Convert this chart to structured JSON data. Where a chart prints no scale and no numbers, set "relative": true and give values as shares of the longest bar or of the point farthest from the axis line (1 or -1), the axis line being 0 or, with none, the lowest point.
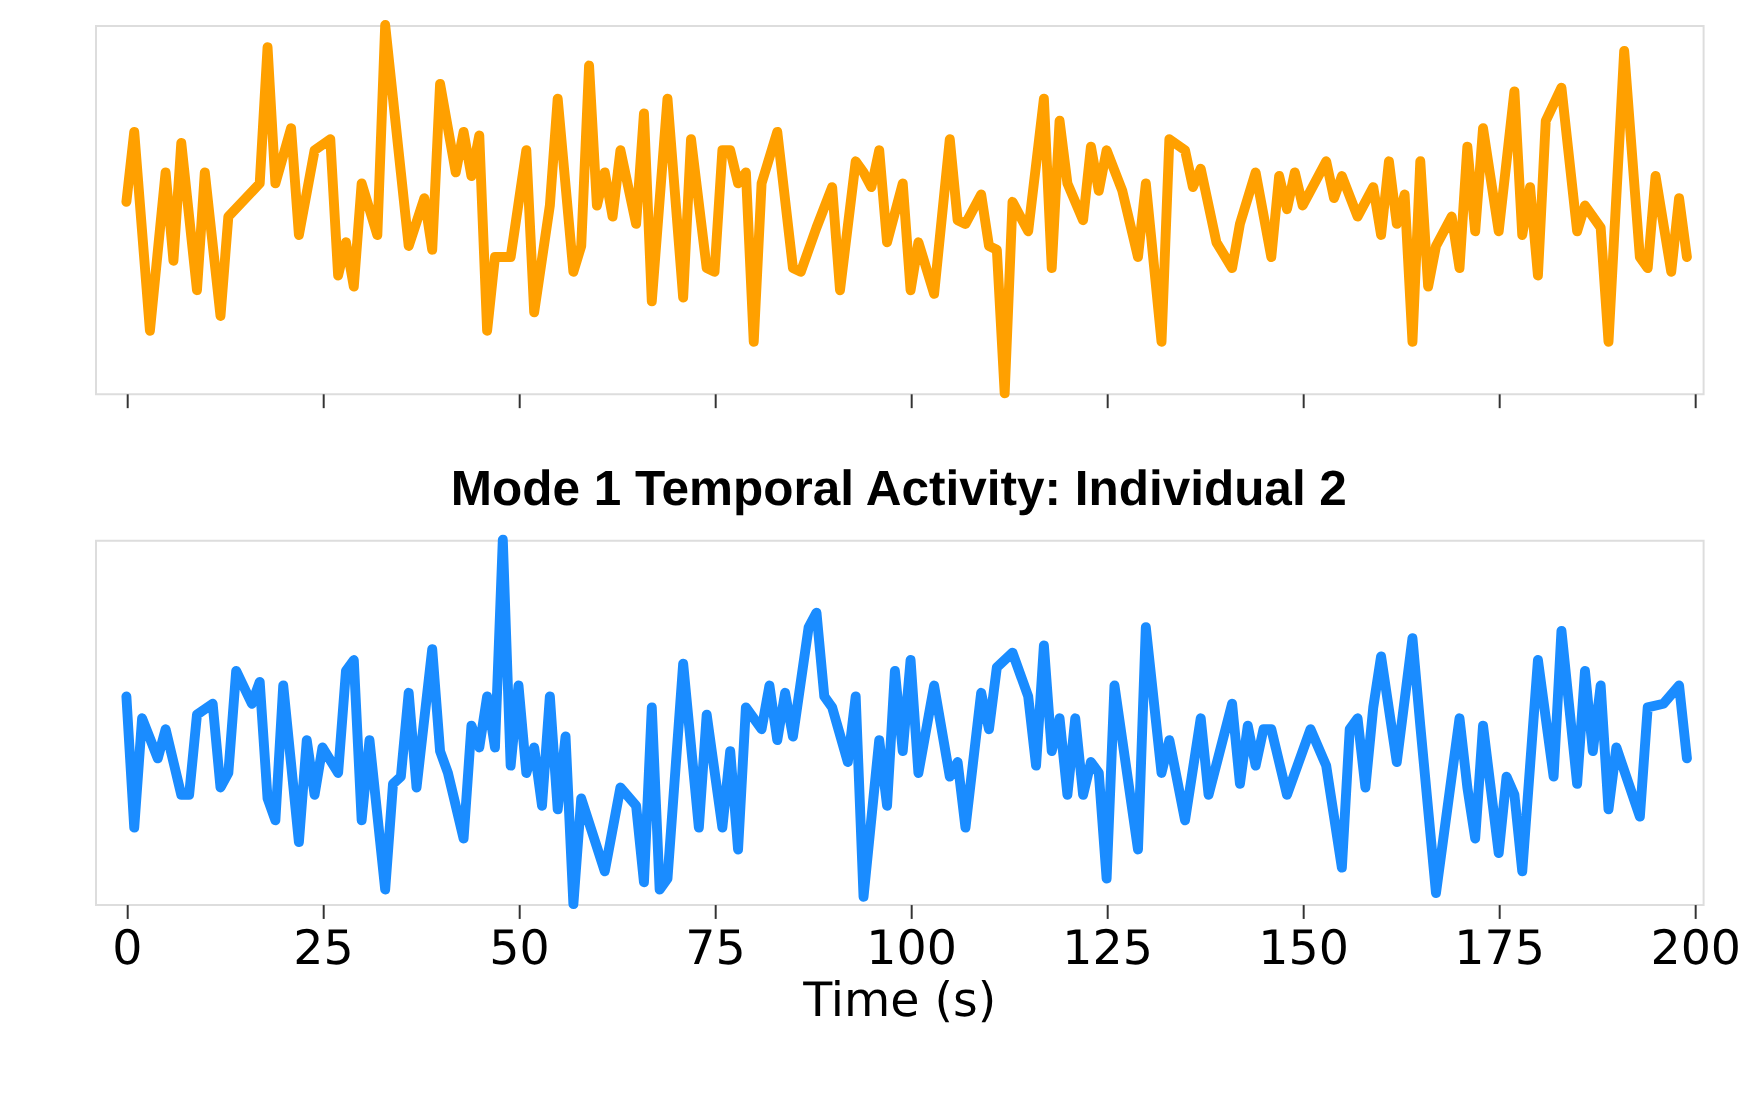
{
  "chart_data": [
    {
      "type": "line",
      "xlim": [
        -4,
        201
      ],
      "xticks": [
        0,
        25,
        50,
        75,
        100,
        125,
        150,
        175,
        200
      ],
      "tick_labels": false,
      "relative": true,
      "grid": false,
      "line_style": "solid",
      "marker": "none",
      "series": [
        {
          "color": "#ffa000",
          "x": [
            0,
            1,
            3,
            5,
            6,
            7,
            9,
            10,
            12,
            13,
            17,
            18,
            19,
            21,
            22,
            24,
            26,
            27,
            28,
            29,
            30,
            32,
            33,
            35,
            36,
            38,
            39,
            40,
            42,
            43,
            44,
            45,
            46,
            47,
            49,
            51,
            52,
            54,
            55,
            57,
            58,
            59,
            60,
            61,
            62,
            63,
            65,
            66,
            67,
            69,
            71,
            72,
            74,
            75,
            76,
            77,
            78,
            79,
            80,
            81,
            83,
            85,
            86,
            88,
            90,
            91,
            93,
            94,
            95,
            96,
            97,
            99,
            100,
            101,
            103,
            105,
            106,
            107,
            109,
            110,
            111,
            112,
            113,
            115,
            117,
            118,
            119,
            120,
            122,
            123,
            124,
            125,
            127,
            129,
            130,
            132,
            133,
            135,
            136,
            137,
            139,
            141,
            142,
            144,
            146,
            147,
            148,
            149,
            150,
            153,
            154,
            155,
            157,
            159,
            160,
            161,
            162,
            163,
            164,
            165,
            166,
            167,
            169,
            170,
            171,
            172,
            173,
            175,
            177,
            178,
            179,
            180,
            181,
            183,
            185,
            186,
            188,
            189,
            191,
            193,
            194,
            195,
            197,
            198,
            199
          ],
          "values": [
            0.52,
            0.71,
            0.17,
            0.6,
            0.36,
            0.68,
            0.28,
            0.6,
            0.21,
            0.48,
            0.57,
            0.94,
            0.57,
            0.72,
            0.43,
            0.66,
            0.69,
            0.32,
            0.41,
            0.29,
            0.57,
            0.43,
            1,
            0.6,
            0.4,
            0.53,
            0.39,
            0.84,
            0.6,
            0.71,
            0.59,
            0.7,
            0.17,
            0.37,
            0.37,
            0.66,
            0.22,
            0.51,
            0.8,
            0.33,
            0.4,
            0.89,
            0.51,
            0.6,
            0.48,
            0.66,
            0.46,
            0.76,
            0.25,
            0.8,
            0.26,
            0.69,
            0.34,
            0.33,
            0.66,
            0.66,
            0.57,
            0.6,
            0.14,
            0.57,
            0.71,
            0.34,
            0.33,
            0.45,
            0.56,
            0.28,
            0.63,
            0.6,
            0.56,
            0.66,
            0.41,
            0.57,
            0.28,
            0.41,
            0.27,
            0.69,
            0.47,
            0.46,
            0.54,
            0.4,
            0.39,
            0,
            0.52,
            0.44,
            0.8,
            0.34,
            0.74,
            0.57,
            0.47,
            0.67,
            0.55,
            0.66,
            0.55,
            0.37,
            0.57,
            0.14,
            0.69,
            0.66,
            0.56,
            0.61,
            0.41,
            0.34,
            0.46,
            0.6,
            0.37,
            0.59,
            0.5,
            0.6,
            0.51,
            0.63,
            0.53,
            0.59,
            0.48,
            0.56,
            0.43,
            0.63,
            0.46,
            0.54,
            0.14,
            0.63,
            0.29,
            0.4,
            0.48,
            0.34,
            0.67,
            0.44,
            0.72,
            0.44,
            0.82,
            0.43,
            0.56,
            0.32,
            0.74,
            0.83,
            0.44,
            0.51,
            0.45,
            0.14,
            0.93,
            0.37,
            0.34,
            0.59,
            0.33,
            0.53,
            0.37
          ]
        }
      ]
    },
    {
      "type": "line",
      "title": "Mode 1 Temporal Activity: Individual 2",
      "xlabel": "Time (s)",
      "xlim": [
        -4,
        201
      ],
      "xticks": [
        0,
        25,
        50,
        75,
        100,
        125,
        150,
        175,
        200
      ],
      "tick_labels": "x",
      "relative": true,
      "grid": false,
      "line_style": "solid",
      "marker": "none",
      "series": [
        {
          "color": "#1a8cff",
          "x": [
            0,
            1,
            2,
            4,
            5,
            7,
            8,
            9,
            11,
            12,
            13,
            14,
            16,
            17,
            18,
            19,
            20,
            22,
            23,
            24,
            25,
            27,
            28,
            29,
            30,
            31,
            33,
            34,
            35,
            36,
            37,
            39,
            40,
            41,
            43,
            44,
            45,
            46,
            47,
            48,
            49,
            50,
            51,
            52,
            53,
            54,
            55,
            56,
            57,
            58,
            61,
            63,
            65,
            66,
            67,
            68,
            69,
            71,
            73,
            74,
            76,
            77,
            78,
            79,
            81,
            82,
            83,
            84,
            85,
            87,
            88,
            89,
            90,
            92,
            93,
            94,
            96,
            97,
            98,
            99,
            100,
            101,
            103,
            105,
            106,
            107,
            109,
            110,
            111,
            113,
            115,
            116,
            117,
            118,
            119,
            120,
            121,
            122,
            123,
            124,
            125,
            126,
            127,
            129,
            130,
            132,
            133,
            135,
            137,
            138,
            141,
            142,
            143,
            144,
            145,
            146,
            148,
            151,
            153,
            155,
            156,
            157,
            158,
            159,
            160,
            162,
            164,
            165,
            167,
            170,
            171,
            172,
            173,
            175,
            176,
            177,
            178,
            180,
            182,
            183,
            185,
            186,
            187,
            188,
            189,
            190,
            193,
            194,
            196,
            198,
            199
          ],
          "values": [
            0.57,
            0.21,
            0.51,
            0.4,
            0.48,
            0.3,
            0.3,
            0.52,
            0.55,
            0.32,
            0.36,
            0.64,
            0.55,
            0.61,
            0.29,
            0.23,
            0.6,
            0.17,
            0.45,
            0.3,
            0.43,
            0.36,
            0.64,
            0.67,
            0.23,
            0.45,
            0.04,
            0.33,
            0.35,
            0.58,
            0.32,
            0.7,
            0.42,
            0.36,
            0.18,
            0.49,
            0.43,
            0.57,
            0.43,
            1,
            0.38,
            0.6,
            0.36,
            0.43,
            0.27,
            0.57,
            0.26,
            0.46,
            0,
            0.29,
            0.09,
            0.32,
            0.27,
            0.06,
            0.54,
            0.04,
            0.07,
            0.66,
            0.21,
            0.52,
            0.21,
            0.42,
            0.15,
            0.54,
            0.48,
            0.6,
            0.45,
            0.58,
            0.46,
            0.76,
            0.8,
            0.57,
            0.54,
            0.39,
            0.57,
            0.02,
            0.45,
            0.27,
            0.64,
            0.42,
            0.67,
            0.36,
            0.6,
            0.35,
            0.39,
            0.21,
            0.58,
            0.48,
            0.65,
            0.69,
            0.57,
            0.38,
            0.71,
            0.42,
            0.51,
            0.3,
            0.51,
            0.3,
            0.39,
            0.36,
            0.07,
            0.6,
            0.45,
            0.15,
            0.76,
            0.36,
            0.45,
            0.23,
            0.51,
            0.3,
            0.55,
            0.33,
            0.49,
            0.38,
            0.48,
            0.48,
            0.3,
            0.48,
            0.38,
            0.1,
            0.48,
            0.51,
            0.32,
            0.54,
            0.68,
            0.39,
            0.73,
            0.49,
            0.03,
            0.51,
            0.32,
            0.18,
            0.49,
            0.14,
            0.35,
            0.3,
            0.09,
            0.67,
            0.35,
            0.75,
            0.33,
            0.64,
            0.42,
            0.6,
            0.26,
            0.43,
            0.24,
            0.54,
            0.55,
            0.6,
            0.4
          ]
        }
      ]
    }
  ]
}
